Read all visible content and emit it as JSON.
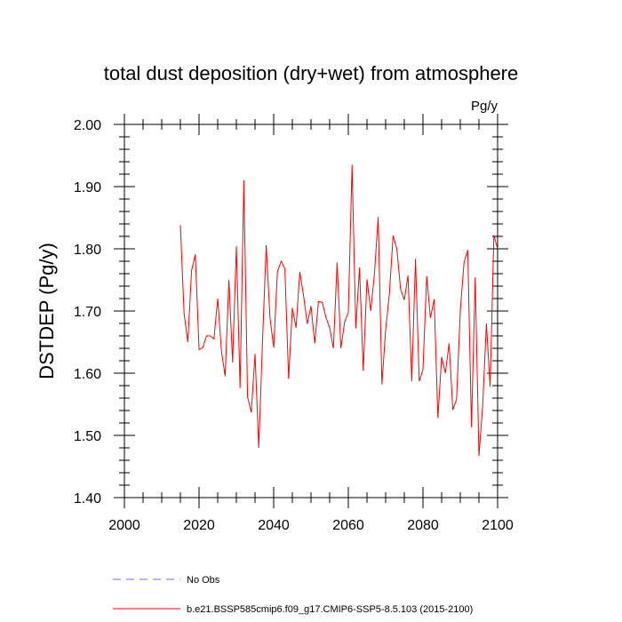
{
  "chart_data": {
    "type": "line",
    "title": "total dust deposition (dry+wet) from atmosphere",
    "units": "Pg/y",
    "ylabel": "DSTDEP  (Pg/y)",
    "xlabel": "",
    "xlim": [
      2000,
      2100
    ],
    "ylim": [
      1.4,
      2.0
    ],
    "xticks": [
      2000,
      2020,
      2040,
      2060,
      2080,
      2100
    ],
    "xtick_labels": [
      "2000",
      "2020",
      "2040",
      "2060",
      "2080",
      "2100"
    ],
    "yticks": [
      1.4,
      1.5,
      1.6,
      1.7,
      1.8,
      1.9,
      2.0
    ],
    "ytick_labels": [
      "1.40",
      "1.50",
      "1.60",
      "1.70",
      "1.80",
      "1.90",
      "2.00"
    ],
    "series": [
      {
        "name": "b.e21.BSSP585cmip6.f09_g17.CMIP6-SSP5-8.5.103 (2015-2100)",
        "color": "#ff0000",
        "x": [
          2015,
          2016,
          2017,
          2018,
          2019,
          2020,
          2021,
          2022,
          2023,
          2024,
          2025,
          2026,
          2027,
          2028,
          2029,
          2030,
          2031,
          2032,
          2033,
          2034,
          2035,
          2036,
          2037,
          2038,
          2039,
          2040,
          2041,
          2042,
          2043,
          2044,
          2045,
          2046,
          2047,
          2048,
          2049,
          2050,
          2051,
          2052,
          2053,
          2054,
          2055,
          2056,
          2057,
          2058,
          2059,
          2060,
          2061,
          2062,
          2063,
          2064,
          2065,
          2066,
          2067,
          2068,
          2069,
          2070,
          2071,
          2072,
          2073,
          2074,
          2075,
          2076,
          2077,
          2078,
          2079,
          2080,
          2081,
          2082,
          2083,
          2084,
          2085,
          2086,
          2087,
          2088,
          2089,
          2090,
          2091,
          2092,
          2093,
          2094,
          2095,
          2096,
          2097,
          2098,
          2099,
          2100
        ],
        "values": [
          1.838,
          1.695,
          1.65,
          1.765,
          1.791,
          1.638,
          1.641,
          1.66,
          1.66,
          1.655,
          1.72,
          1.636,
          1.595,
          1.75,
          1.617,
          1.804,
          1.576,
          1.91,
          1.562,
          1.537,
          1.631,
          1.48,
          1.65,
          1.806,
          1.69,
          1.641,
          1.763,
          1.78,
          1.768,
          1.591,
          1.705,
          1.673,
          1.763,
          1.725,
          1.679,
          1.708,
          1.648,
          1.715,
          1.714,
          1.69,
          1.673,
          1.64,
          1.778,
          1.64,
          1.682,
          1.698,
          1.935,
          1.672,
          1.77,
          1.604,
          1.751,
          1.7,
          1.76,
          1.851,
          1.582,
          1.67,
          1.728,
          1.821,
          1.8,
          1.735,
          1.718,
          1.757,
          1.587,
          1.784,
          1.587,
          1.606,
          1.756,
          1.689,
          1.719,
          1.528,
          1.626,
          1.6,
          1.648,
          1.541,
          1.558,
          1.7,
          1.778,
          1.798,
          1.513,
          1.754,
          1.467,
          1.548,
          1.68,
          1.578,
          1.822,
          1.8
        ]
      },
      {
        "name": "No Obs",
        "color": "#6a6aff",
        "dashed": true,
        "x": [],
        "values": []
      }
    ],
    "legend_position": "bottom"
  }
}
